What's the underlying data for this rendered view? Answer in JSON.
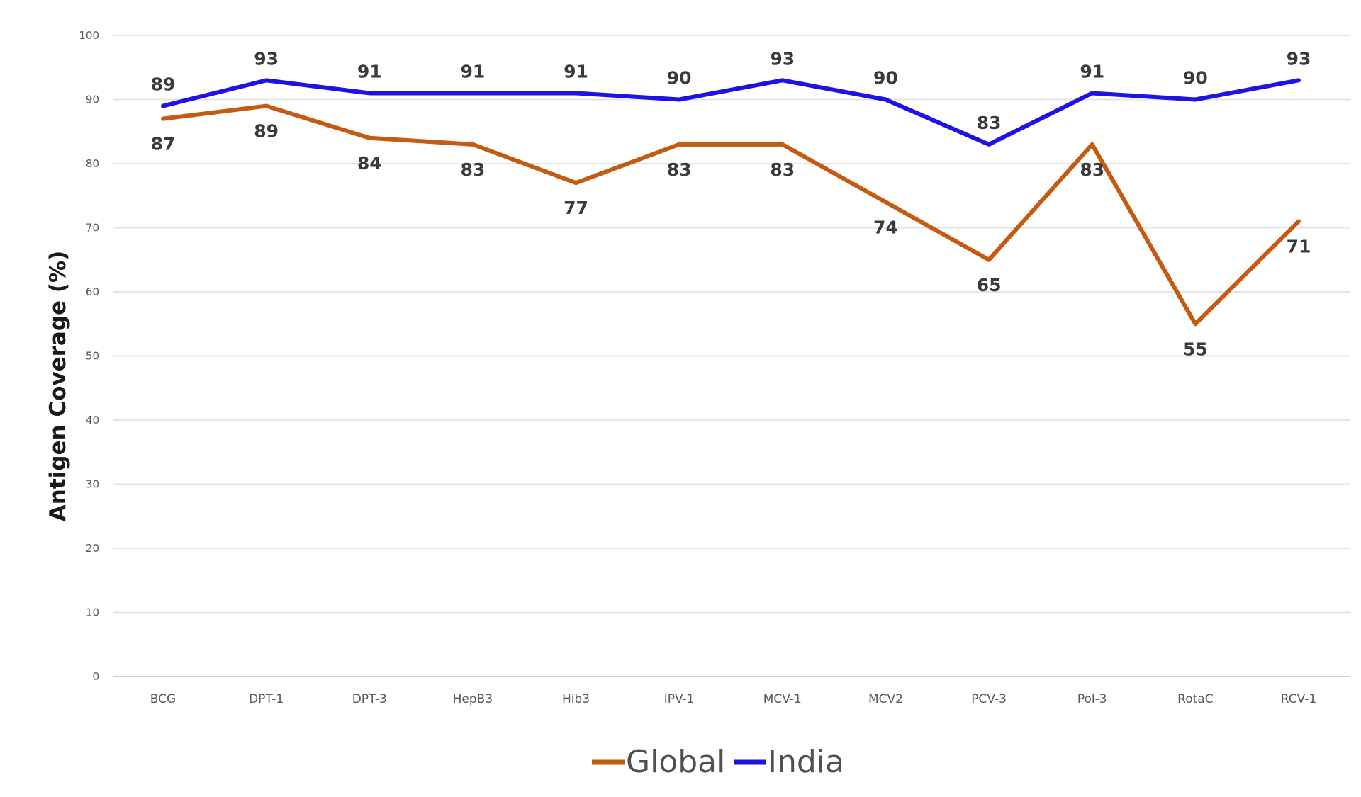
{
  "chart_data": {
    "type": "line",
    "categories": [
      "BCG",
      "DPT-1",
      "DPT-3",
      "HepB3",
      "Hib3",
      "IPV-1",
      "MCV-1",
      "MCV2",
      "PCV-3",
      "Pol-3",
      "RotaC",
      "RCV-1"
    ],
    "series": [
      {
        "name": "Global",
        "color": "#C55A11",
        "values": [
          87,
          89,
          84,
          83,
          77,
          83,
          83,
          74,
          65,
          83,
          55,
          71
        ]
      },
      {
        "name": "India",
        "color": "#1F12E6",
        "values": [
          89,
          93,
          91,
          91,
          91,
          90,
          93,
          90,
          83,
          91,
          90,
          93
        ]
      }
    ],
    "ylabel": "Antigen Coverage (%)",
    "ylim": [
      0,
      100
    ],
    "yticks": [
      0,
      10,
      20,
      30,
      40,
      50,
      60,
      70,
      80,
      90,
      100
    ],
    "grid": true,
    "legend": "bottom-center",
    "data_labels": true
  }
}
